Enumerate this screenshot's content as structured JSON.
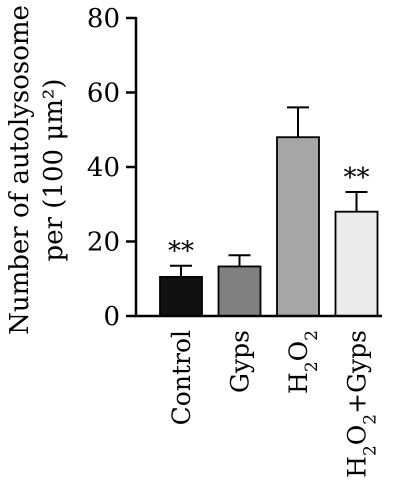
{
  "chart_data": {
    "type": "bar",
    "ylabel_line1": "Number of autolysosome",
    "ylabel_line2": "per (100 μm²)",
    "ylim": [
      0,
      80
    ],
    "yticks": [
      0,
      20,
      40,
      60,
      80
    ],
    "tick_labels": [
      "0",
      "20",
      "40",
      "60",
      "80"
    ],
    "categories": [
      "Control",
      "Gyps",
      "H2O2",
      "H2O2+Gyps"
    ],
    "category_labels": [
      {
        "base": "Control"
      },
      {
        "base": "Gyps"
      },
      {
        "base": "H",
        "sub": "2",
        "mid": "O",
        "sub2": "2"
      },
      {
        "base": "H",
        "sub": "2",
        "mid": "O",
        "sub2": "2",
        "tail": "+Gyps"
      }
    ],
    "values": [
      10.5,
      13.3,
      48,
      28
    ],
    "errors": [
      3.0,
      3.0,
      8.0,
      5.3
    ],
    "bar_colors": [
      "#111111",
      "#808080",
      "#a6a6a6",
      "#ebebeb"
    ],
    "significance": [
      "**",
      "",
      "",
      "**"
    ],
    "grid": false
  }
}
